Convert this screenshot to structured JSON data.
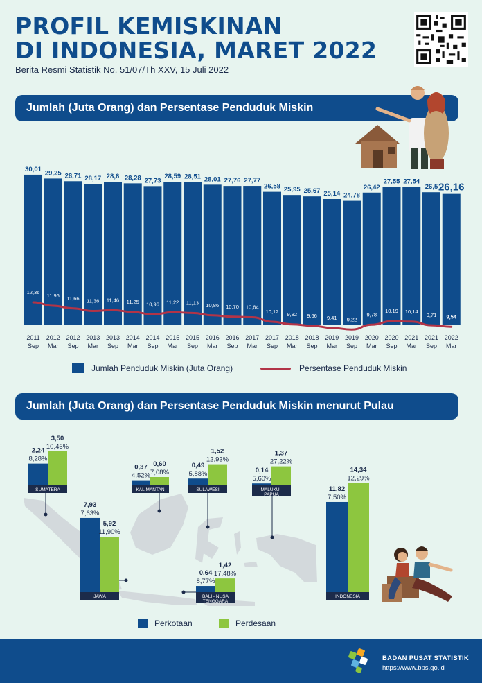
{
  "header": {
    "title_line1": "PROFIL KEMISKINAN",
    "title_line2": "DI INDONESIA, MARET 2022",
    "subtitle": "Berita Resmi Statistik No. 51/07/Th XXV, 15 Juli 2022"
  },
  "section1": {
    "title": "Jumlah (Juta Orang) dan Persentase Penduduk Miskin"
  },
  "section2": {
    "title": "Jumlah (Juta Orang) dan Persentase Penduduk Miskin menurut Pulau"
  },
  "legend1": {
    "bars": "Jumlah Penduduk Miskin (Juta Orang)",
    "line": "Persentase Penduduk Miskin"
  },
  "legend2": {
    "urban": "Perkotaan",
    "rural": "Perdesaan"
  },
  "footer": {
    "org": "BADAN PUSAT STATISTIK",
    "url": "https://www.bps.go.id"
  },
  "colors": {
    "dark_blue": "#0f4c8c",
    "bar_blue": "#0f4c8c",
    "line_red": "#b23447",
    "green": "#8dc63f",
    "map": "#d3d9dc",
    "background": "#e7f4ef"
  },
  "icons": [
    "qr-code-icon",
    "family-house-illustration-icon",
    "map-indonesia-icon",
    "couple-illustration-icon",
    "bps-logo-icon"
  ],
  "chart_data": [
    {
      "type": "bar",
      "categories": [
        "2011 Sep",
        "2012 Mar",
        "2012 Sep",
        "2013 Mar",
        "2013 Sep",
        "2014 Mar",
        "2014 Sep",
        "2015 Mar",
        "2015 Sep",
        "2016 Mar",
        "2016 Sep",
        "2017 Mar",
        "2017 Sep",
        "2018 Mar",
        "2018 Sep",
        "2019 Mar",
        "2019 Sep",
        "2020 Mar",
        "2020 Sep",
        "2021 Mar",
        "2021 Sep",
        "2022 Mar"
      ],
      "x_years": [
        "2011",
        "2012",
        "2012",
        "2013",
        "2013",
        "2014",
        "2014",
        "2015",
        "2015",
        "2016",
        "2016",
        "2017",
        "2017",
        "2018",
        "2018",
        "2019",
        "2019",
        "2020",
        "2020",
        "2021",
        "2021",
        "2022"
      ],
      "x_months": [
        "Sep",
        "Mar",
        "Sep",
        "Mar",
        "Sep",
        "Mar",
        "Sep",
        "Mar",
        "Sep",
        "Mar",
        "Sep",
        "Mar",
        "Sep",
        "Mar",
        "Sep",
        "Mar",
        "Sep",
        "Mar",
        "Sep",
        "Mar",
        "Sep",
        "Mar"
      ],
      "series": [
        {
          "name": "Jumlah Penduduk Miskin (Juta Orang)",
          "type": "bar",
          "values": [
            30.01,
            29.25,
            28.71,
            28.17,
            28.6,
            28.28,
            27.73,
            28.59,
            28.51,
            28.01,
            27.76,
            27.77,
            26.58,
            25.95,
            25.67,
            25.14,
            24.78,
            26.42,
            27.55,
            27.54,
            26.5,
            26.16
          ]
        },
        {
          "name": "Persentase Penduduk Miskin",
          "type": "line",
          "values": [
            12.36,
            11.96,
            11.66,
            11.36,
            11.46,
            11.25,
            10.96,
            11.22,
            11.13,
            10.86,
            10.7,
            10.64,
            10.12,
            9.82,
            9.66,
            9.41,
            9.22,
            9.78,
            10.19,
            10.14,
            9.71,
            9.54
          ]
        }
      ],
      "bar_labels": [
        "30,01",
        "29,25",
        "28,71",
        "28,17",
        "28,6",
        "28,28",
        "27,73",
        "28,59",
        "28,51",
        "28,01",
        "27,76",
        "27,77",
        "26,58",
        "25,95",
        "25,67",
        "25,14",
        "24,78",
        "26,42",
        "27,55",
        "27,54",
        "26,5",
        "26,16"
      ],
      "pct_labels": [
        "12,36",
        "11,96",
        "11,66",
        "11,36",
        "11,46",
        "11,25",
        "10,96",
        "11,22",
        "11,13",
        "10,86",
        "10,70",
        "10,64",
        "10,12",
        "9,82",
        "9,66",
        "9,41",
        "9,22",
        "9,78",
        "10,19",
        "10,14",
        "9,71",
        "9,54"
      ],
      "legend": "bottom"
    },
    {
      "type": "bar",
      "categories": [
        "SUMATERA",
        "KALIMANTAN",
        "SULAWESI",
        "MALUKU - PAPUA",
        "JAWA",
        "BALI - NUSA TENGGARA",
        "INDONESIA"
      ],
      "category_lines": [
        [
          "SUMATERA"
        ],
        [
          "KALIMANTAN"
        ],
        [
          "SULAWESI"
        ],
        [
          "MALUKU -",
          "PAPUA"
        ],
        [
          "JAWA"
        ],
        [
          "BALI - NUSA",
          "TENGGARA"
        ],
        [
          "INDONESIA"
        ]
      ],
      "series": [
        {
          "name": "Perkotaan",
          "values": [
            2.24,
            0.37,
            0.49,
            0.14,
            7.93,
            0.64,
            11.82
          ],
          "pct": [
            8.28,
            4.52,
            5.88,
            5.6,
            7.63,
            8.77,
            7.5
          ],
          "labels": [
            "2,24",
            "0,37",
            "0,49",
            "0,14",
            "7,93",
            "0,64",
            "11,82"
          ],
          "pct_labels": [
            "8,28%",
            "4,52%",
            "5,88%",
            "5,60%",
            "7,63%",
            "8,77%",
            "7,50%"
          ]
        },
        {
          "name": "Perdesaan",
          "values": [
            3.5,
            0.6,
            1.52,
            1.37,
            5.92,
            1.42,
            14.34
          ],
          "pct": [
            10.46,
            7.08,
            12.93,
            27.22,
            11.9,
            17.48,
            12.29
          ],
          "labels": [
            "3,50",
            "0,60",
            "1,52",
            "1,37",
            "5,92",
            "1,42",
            "14,34"
          ],
          "pct_labels": [
            "10,46%",
            "7,08%",
            "12,93%",
            "27,22%",
            "11,90%",
            "17,48%",
            "12,29%"
          ]
        }
      ],
      "legend": "bottom"
    }
  ]
}
